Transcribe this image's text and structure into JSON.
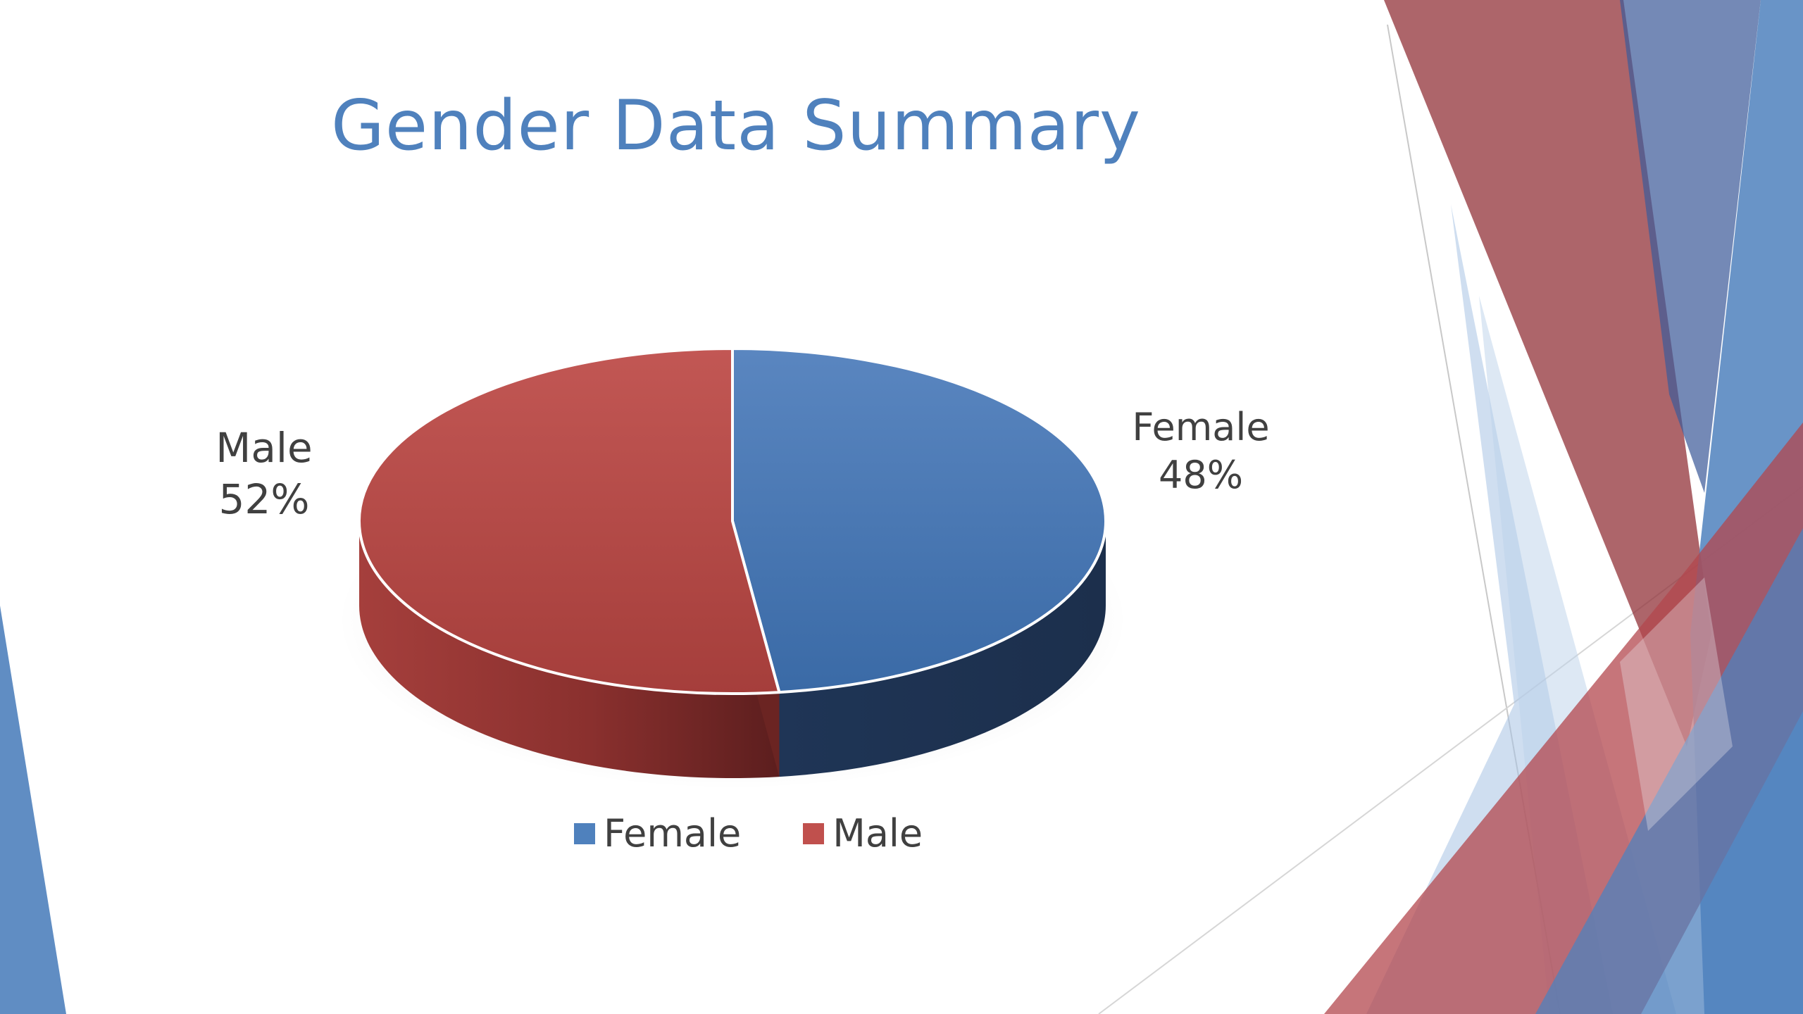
{
  "slide": {
    "title": "Gender Data Summary",
    "title_color": "#4f81bd"
  },
  "chart_data": {
    "type": "pie",
    "style": "3d",
    "title": "",
    "categories": [
      "Female",
      "Male"
    ],
    "values": [
      48,
      52
    ],
    "value_unit": "%",
    "colors": [
      "#4f81bd",
      "#c0504d"
    ],
    "data_labels": [
      {
        "category": "Female",
        "text": "48%"
      },
      {
        "category": "Male",
        "text": "52%"
      }
    ],
    "legend": {
      "position": "bottom",
      "entries": [
        "Female",
        "Male"
      ]
    }
  }
}
